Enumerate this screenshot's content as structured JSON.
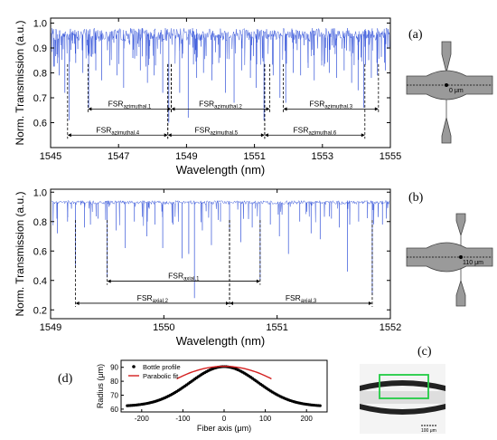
{
  "panels": {
    "a": "(a)",
    "b": "(b)",
    "c": "(c)",
    "d": "(d)"
  },
  "schematics": {
    "a_position": "0 μm",
    "b_position": "110 μm"
  },
  "microscope": {
    "scale_bar": "100 μm"
  },
  "chart_data": [
    {
      "id": "a",
      "type": "line",
      "xlabel": "Wavelength (nm)",
      "ylabel": "Norm. Transmission (a.u.)",
      "xlim": [
        1545,
        1555
      ],
      "ylim": [
        0.5,
        1.02
      ],
      "xticks": [
        "1545",
        "1547",
        "1549",
        "1551",
        "1553",
        "1555"
      ],
      "yticks": [
        "0.6",
        "0.7",
        "0.8",
        "0.9",
        "1.0"
      ],
      "color": "#3050d8",
      "baseline": 0.955,
      "dips": [
        [
          1545.25,
          0.79
        ],
        [
          1545.42,
          0.72
        ],
        [
          1545.55,
          0.61
        ],
        [
          1545.74,
          0.84
        ],
        [
          1545.95,
          0.8
        ],
        [
          1546.12,
          0.66
        ],
        [
          1546.33,
          0.81
        ],
        [
          1546.5,
          0.77
        ],
        [
          1546.74,
          0.83
        ],
        [
          1546.95,
          0.79
        ],
        [
          1547.15,
          0.74
        ],
        [
          1547.42,
          0.86
        ],
        [
          1547.64,
          0.81
        ],
        [
          1547.85,
          0.76
        ],
        [
          1548.05,
          0.79
        ],
        [
          1548.3,
          0.72
        ],
        [
          1548.48,
          0.6
        ],
        [
          1548.8,
          0.72
        ],
        [
          1549.05,
          0.62
        ],
        [
          1549.3,
          0.78
        ],
        [
          1549.5,
          0.8
        ],
        [
          1549.75,
          0.77
        ],
        [
          1549.95,
          0.84
        ],
        [
          1550.15,
          0.72
        ],
        [
          1550.4,
          0.68
        ],
        [
          1550.62,
          0.81
        ],
        [
          1550.88,
          0.78
        ],
        [
          1551.05,
          0.74
        ],
        [
          1551.28,
          0.61
        ],
        [
          1551.55,
          0.79
        ],
        [
          1551.75,
          0.7
        ],
        [
          1551.92,
          0.68
        ],
        [
          1552.14,
          0.8
        ],
        [
          1552.36,
          0.79
        ],
        [
          1552.58,
          0.82
        ],
        [
          1552.76,
          0.77
        ],
        [
          1552.98,
          0.83
        ],
        [
          1553.2,
          0.8
        ],
        [
          1553.42,
          0.78
        ],
        [
          1553.64,
          0.81
        ],
        [
          1553.86,
          0.76
        ],
        [
          1554.05,
          0.73
        ],
        [
          1554.22,
          0.66
        ],
        [
          1554.44,
          0.78
        ],
        [
          1554.62,
          0.79
        ],
        [
          1554.85,
          0.81
        ]
      ],
      "annotations": [
        {
          "label": "FSR",
          "sub": "azimuthal,1",
          "x0": 1546.1,
          "x1": 1548.55,
          "y": 0.655
        },
        {
          "label": "FSR",
          "sub": "azimuthal,2",
          "x0": 1548.55,
          "x1": 1551.45,
          "y": 0.655
        },
        {
          "label": "FSR",
          "sub": "azimuthal,3",
          "x0": 1551.85,
          "x1": 1554.65,
          "y": 0.655
        },
        {
          "label": "FSR",
          "sub": "azimuthal,4",
          "x0": 1545.5,
          "x1": 1548.45,
          "y": 0.55
        },
        {
          "label": "FSR",
          "sub": "azimuthal,5",
          "x0": 1548.45,
          "x1": 1551.3,
          "y": 0.55
        },
        {
          "label": "FSR",
          "sub": "azimuthal,6",
          "x0": 1551.3,
          "x1": 1554.25,
          "y": 0.55
        }
      ]
    },
    {
      "id": "b",
      "type": "line",
      "xlabel": "Wavelength (nm)",
      "ylabel": "Norm. Transmission (a.u.)",
      "xlim": [
        1549,
        1552
      ],
      "ylim": [
        0.14,
        1.02
      ],
      "xticks": [
        "1549",
        "1550",
        "1551",
        "1552"
      ],
      "yticks": [
        "0.2",
        "0.4",
        "0.6",
        "0.8",
        "1.0"
      ],
      "color": "#3050d8",
      "baseline": 0.93,
      "dips": [
        [
          1549.06,
          0.72
        ],
        [
          1549.15,
          0.8
        ],
        [
          1549.22,
          0.5
        ],
        [
          1549.3,
          0.76
        ],
        [
          1549.42,
          0.82
        ],
        [
          1549.5,
          0.42
        ],
        [
          1549.58,
          0.74
        ],
        [
          1549.66,
          0.62
        ],
        [
          1549.74,
          0.8
        ],
        [
          1549.85,
          0.7
        ],
        [
          1549.92,
          0.78
        ],
        [
          1549.99,
          0.62
        ],
        [
          1550.08,
          0.78
        ],
        [
          1550.16,
          0.55
        ],
        [
          1550.22,
          0.58
        ],
        [
          1550.27,
          0.28
        ],
        [
          1550.34,
          0.74
        ],
        [
          1550.42,
          0.64
        ],
        [
          1550.5,
          0.8
        ],
        [
          1550.58,
          0.74
        ],
        [
          1550.68,
          0.66
        ],
        [
          1550.78,
          0.76
        ],
        [
          1550.85,
          0.4
        ],
        [
          1550.94,
          0.78
        ],
        [
          1551.02,
          0.7
        ],
        [
          1551.1,
          0.58
        ],
        [
          1551.2,
          0.8
        ],
        [
          1551.3,
          0.72
        ],
        [
          1551.38,
          0.68
        ],
        [
          1551.48,
          0.82
        ],
        [
          1551.55,
          0.76
        ],
        [
          1551.62,
          0.46
        ],
        [
          1551.72,
          0.8
        ],
        [
          1551.84,
          0.3
        ],
        [
          1551.93,
          0.78
        ]
      ],
      "annotations": [
        {
          "label": "FSR",
          "sub": "axial,1",
          "x0": 1549.5,
          "x1": 1550.85,
          "y": 0.395
        },
        {
          "label": "FSR",
          "sub": "axial,2",
          "x0": 1549.22,
          "x1": 1550.58,
          "y": 0.245
        },
        {
          "label": "FSR",
          "sub": "axial,3",
          "x0": 1550.58,
          "x1": 1551.84,
          "y": 0.245
        }
      ]
    },
    {
      "id": "d",
      "type": "scatter",
      "xlabel": "Fiber axis (μm)",
      "ylabel": "Radius (μm)",
      "xlim": [
        -250,
        250
      ],
      "ylim": [
        58,
        95
      ],
      "xticks": [
        "-200",
        "-100",
        "0",
        "100",
        "200"
      ],
      "yticks": [
        "60",
        "70",
        "80",
        "90"
      ],
      "series": [
        {
          "name": "Bottle profile",
          "style": "dots",
          "color": "#000000",
          "peak": 90.5,
          "floor": 62.0,
          "sigma": 82
        },
        {
          "name": "Parabolic fit",
          "style": "line",
          "color": "#d42020",
          "vertex": 90.7,
          "curvature": 0.00068,
          "x_range": [
            -115,
            115
          ]
        }
      ]
    }
  ]
}
